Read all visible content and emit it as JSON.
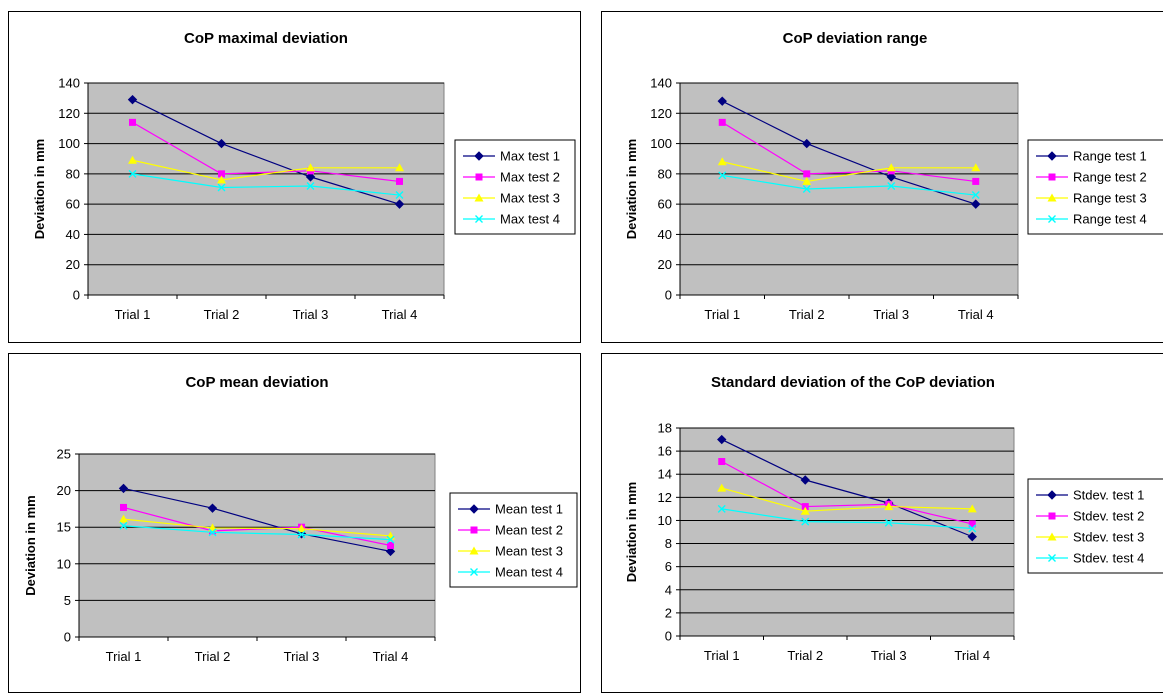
{
  "colors": {
    "plot_bg": "#c0c0c0",
    "grid": "#000000",
    "series": [
      "#000080",
      "#ff00ff",
      "#ffff00",
      "#00ffff"
    ]
  },
  "markers": [
    "diamond",
    "square",
    "triangle",
    "x"
  ],
  "chart_data": [
    {
      "type": "line",
      "title": "CoP maximal deviation",
      "xlabel": "",
      "ylabel": "Deviation in mm",
      "categories": [
        "Trial 1",
        "Trial 2",
        "Trial 3",
        "Trial 4"
      ],
      "ylim": [
        0,
        140
      ],
      "yticks": [
        0,
        20,
        40,
        60,
        80,
        100,
        120,
        140
      ],
      "grid": true,
      "legend": "right",
      "series": [
        {
          "name": "Max test 1",
          "values": [
            129,
            100,
            78,
            60
          ]
        },
        {
          "name": "Max test 2",
          "values": [
            114,
            80,
            82,
            75
          ]
        },
        {
          "name": "Max test 3",
          "values": [
            89,
            76,
            84,
            84
          ]
        },
        {
          "name": "Max test 4",
          "values": [
            80,
            71,
            72,
            66
          ]
        }
      ]
    },
    {
      "type": "line",
      "title": "CoP deviation range",
      "xlabel": "",
      "ylabel": "Deviation in mm",
      "categories": [
        "Trial 1",
        "Trial 2",
        "Trial 3",
        "Trial 4"
      ],
      "ylim": [
        0,
        140
      ],
      "yticks": [
        0,
        20,
        40,
        60,
        80,
        100,
        120,
        140
      ],
      "grid": true,
      "legend": "right",
      "series": [
        {
          "name": "Range test 1",
          "values": [
            128,
            100,
            78,
            60
          ]
        },
        {
          "name": "Range test 2",
          "values": [
            114,
            80,
            82,
            75
          ]
        },
        {
          "name": "Range test 3",
          "values": [
            88,
            75,
            84,
            84
          ]
        },
        {
          "name": "Range test 4",
          "values": [
            79,
            70,
            72,
            66
          ]
        }
      ]
    },
    {
      "type": "line",
      "title": "CoP mean deviation",
      "xlabel": "",
      "ylabel": "Deviation in mm",
      "categories": [
        "Trial 1",
        "Trial 2",
        "Trial 3",
        "Trial 4"
      ],
      "ylim": [
        0,
        25
      ],
      "yticks": [
        0,
        5,
        10,
        15,
        20,
        25
      ],
      "grid": true,
      "legend": "right",
      "series": [
        {
          "name": "Mean test 1",
          "values": [
            20.3,
            17.6,
            14.1,
            11.7
          ]
        },
        {
          "name": "Mean test 2",
          "values": [
            17.7,
            14.5,
            15.0,
            12.5
          ]
        },
        {
          "name": "Mean test 3",
          "values": [
            16.1,
            14.9,
            14.8,
            13.8
          ]
        },
        {
          "name": "Mean test 4",
          "values": [
            15.2,
            14.3,
            14.0,
            13.3
          ]
        }
      ]
    },
    {
      "type": "line",
      "title": "Standard deviation of the CoP deviation",
      "xlabel": "",
      "ylabel": "Deviation in mm",
      "categories": [
        "Trial 1",
        "Trial 2",
        "Trial 3",
        "Trial 4"
      ],
      "ylim": [
        0,
        18
      ],
      "yticks": [
        0,
        2,
        4,
        6,
        8,
        10,
        12,
        14,
        16,
        18
      ],
      "grid": true,
      "legend": "right",
      "series": [
        {
          "name": "Stdev. test 1",
          "values": [
            17.0,
            13.5,
            11.5,
            8.6
          ]
        },
        {
          "name": "Stdev. test 2",
          "values": [
            15.1,
            11.2,
            11.4,
            9.7
          ]
        },
        {
          "name": "Stdev. test 3",
          "values": [
            12.8,
            10.8,
            11.2,
            11.0
          ]
        },
        {
          "name": "Stdev. test 4",
          "values": [
            11.0,
            9.9,
            9.8,
            9.3
          ]
        }
      ]
    }
  ]
}
